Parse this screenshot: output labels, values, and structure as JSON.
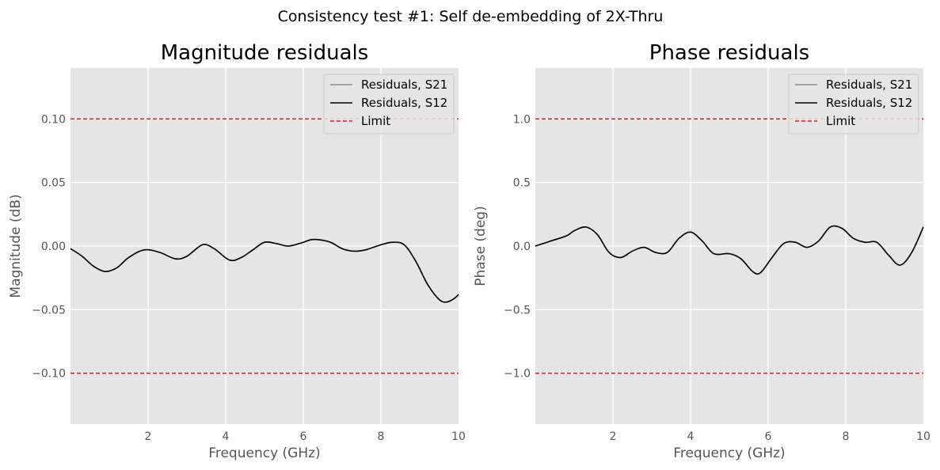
{
  "figure": {
    "title": "Consistency test #1: Self de-embedding of 2X-Thru"
  },
  "colors": {
    "axes_background": "#e5e5e5",
    "grid": "#ffffff",
    "s21": "#8c8c8c",
    "s12": "#000000",
    "limit": "#e41a1c"
  },
  "chart_data": [
    {
      "type": "line",
      "title": "Magnitude residuals",
      "xlabel": "Frequency (GHz)",
      "ylabel": "Magnitude (dB)",
      "xlim": [
        0.0,
        10.0
      ],
      "ylim": [
        -0.14,
        0.14
      ],
      "grid": true,
      "legend_position": "top-right",
      "xticks": [
        2,
        4,
        6,
        8,
        10
      ],
      "xtick_labels": [
        "2",
        "4",
        "6",
        "8",
        "10"
      ],
      "yticks": [
        -0.1,
        -0.05,
        0.0,
        0.05,
        0.1
      ],
      "ytick_labels": [
        "−0.10",
        "−0.05",
        "0.00",
        "0.05",
        "0.10"
      ],
      "limits": [
        0.1,
        -0.1
      ],
      "series": [
        {
          "name": "Residuals, S21",
          "style": "solid",
          "x": [
            0.0,
            0.3,
            0.6,
            0.9,
            1.2,
            1.5,
            1.9,
            2.3,
            2.7,
            3.0,
            3.4,
            3.7,
            4.1,
            4.4,
            4.7,
            5.0,
            5.3,
            5.6,
            5.9,
            6.2,
            6.4,
            6.7,
            7.0,
            7.3,
            7.6,
            8.0,
            8.3,
            8.6,
            8.9,
            9.2,
            9.5,
            9.7,
            9.9,
            10.0
          ],
          "y": [
            -0.002,
            -0.008,
            -0.016,
            -0.02,
            -0.017,
            -0.009,
            -0.003,
            -0.005,
            -0.01,
            -0.008,
            0.001,
            -0.002,
            -0.011,
            -0.009,
            -0.003,
            0.003,
            0.002,
            0.0,
            0.002,
            0.005,
            0.005,
            0.003,
            -0.002,
            -0.004,
            -0.003,
            0.001,
            0.003,
            0.001,
            -0.012,
            -0.03,
            -0.042,
            -0.044,
            -0.041,
            -0.038
          ]
        },
        {
          "name": "Residuals, S12",
          "style": "solid",
          "x": [
            0.0,
            0.3,
            0.6,
            0.9,
            1.2,
            1.5,
            1.9,
            2.3,
            2.7,
            3.0,
            3.4,
            3.7,
            4.1,
            4.4,
            4.7,
            5.0,
            5.3,
            5.6,
            5.9,
            6.2,
            6.4,
            6.7,
            7.0,
            7.3,
            7.6,
            8.0,
            8.3,
            8.6,
            8.9,
            9.2,
            9.5,
            9.7,
            9.9,
            10.0
          ],
          "y": [
            -0.002,
            -0.008,
            -0.016,
            -0.02,
            -0.017,
            -0.009,
            -0.003,
            -0.005,
            -0.01,
            -0.008,
            0.001,
            -0.002,
            -0.011,
            -0.009,
            -0.003,
            0.003,
            0.002,
            0.0,
            0.002,
            0.005,
            0.005,
            0.003,
            -0.002,
            -0.004,
            -0.003,
            0.001,
            0.003,
            0.001,
            -0.012,
            -0.03,
            -0.042,
            -0.044,
            -0.041,
            -0.038
          ]
        },
        {
          "name": "Limit",
          "style": "dashed"
        }
      ]
    },
    {
      "type": "line",
      "title": "Phase residuals",
      "xlabel": "Frequency (GHz)",
      "ylabel": "Phase (deg)",
      "xlim": [
        0.0,
        10.0
      ],
      "ylim": [
        -1.4,
        1.4
      ],
      "grid": true,
      "legend_position": "top-right",
      "xticks": [
        2,
        4,
        6,
        8,
        10
      ],
      "xtick_labels": [
        "2",
        "4",
        "6",
        "8",
        "10"
      ],
      "yticks": [
        -1.0,
        -0.5,
        0.0,
        0.5,
        1.0
      ],
      "ytick_labels": [
        "−1.0",
        "−0.5",
        "0.0",
        "0.5",
        "1.0"
      ],
      "limits": [
        1.0,
        -1.0
      ],
      "series": [
        {
          "name": "Residuals, S21",
          "style": "solid",
          "x": [
            0.0,
            0.4,
            0.8,
            1.0,
            1.3,
            1.6,
            1.9,
            2.2,
            2.5,
            2.8,
            3.1,
            3.4,
            3.7,
            4.0,
            4.3,
            4.6,
            5.0,
            5.3,
            5.6,
            5.8,
            6.1,
            6.4,
            6.7,
            7.0,
            7.3,
            7.6,
            7.9,
            8.2,
            8.5,
            8.8,
            9.1,
            9.4,
            9.7,
            10.0
          ],
          "y": [
            0.0,
            0.04,
            0.08,
            0.12,
            0.15,
            0.09,
            -0.05,
            -0.09,
            -0.04,
            -0.01,
            -0.05,
            -0.05,
            0.06,
            0.11,
            0.04,
            -0.06,
            -0.06,
            -0.1,
            -0.2,
            -0.21,
            -0.09,
            0.02,
            0.03,
            -0.01,
            0.04,
            0.15,
            0.14,
            0.06,
            0.03,
            0.03,
            -0.07,
            -0.15,
            -0.05,
            0.15
          ]
        },
        {
          "name": "Residuals, S12",
          "style": "solid",
          "x": [
            0.0,
            0.4,
            0.8,
            1.0,
            1.3,
            1.6,
            1.9,
            2.2,
            2.5,
            2.8,
            3.1,
            3.4,
            3.7,
            4.0,
            4.3,
            4.6,
            5.0,
            5.3,
            5.6,
            5.8,
            6.1,
            6.4,
            6.7,
            7.0,
            7.3,
            7.6,
            7.9,
            8.2,
            8.5,
            8.8,
            9.1,
            9.4,
            9.7,
            10.0
          ],
          "y": [
            0.0,
            0.04,
            0.08,
            0.12,
            0.15,
            0.09,
            -0.05,
            -0.09,
            -0.04,
            -0.01,
            -0.05,
            -0.05,
            0.06,
            0.11,
            0.04,
            -0.06,
            -0.06,
            -0.1,
            -0.2,
            -0.21,
            -0.09,
            0.02,
            0.03,
            -0.01,
            0.04,
            0.15,
            0.14,
            0.06,
            0.03,
            0.03,
            -0.07,
            -0.15,
            -0.05,
            0.15
          ]
        },
        {
          "name": "Limit",
          "style": "dashed"
        }
      ]
    }
  ]
}
